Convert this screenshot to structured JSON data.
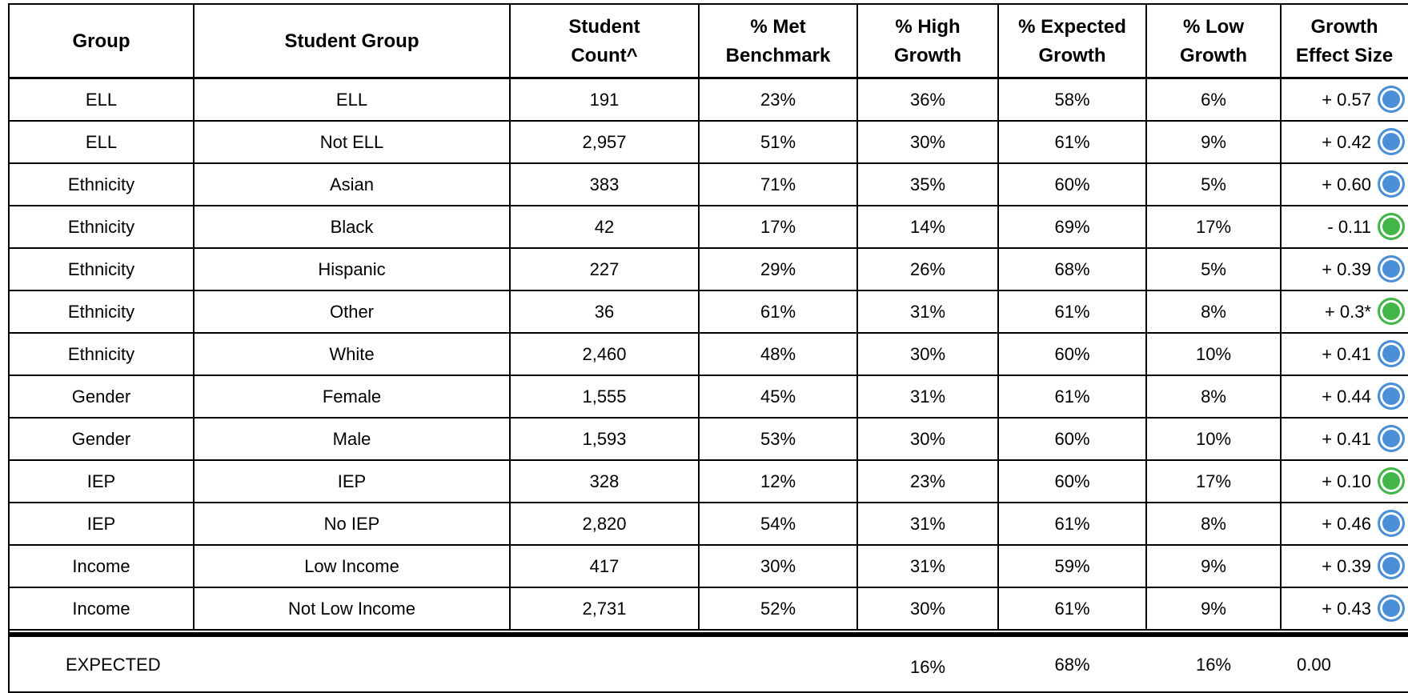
{
  "table": {
    "headers": [
      "Group",
      "Student Group",
      "Student Count^",
      "% Met Benchmark",
      "% High Growth",
      "% Expected Growth",
      "% Low Growth",
      "Growth Effect Size"
    ],
    "rows": [
      [
        "ELL",
        "ELL",
        "191",
        "23%",
        "36%",
        "58%",
        "6%",
        "+ 0.57"
      ],
      [
        "ELL",
        "Not ELL",
        "2,957",
        "51%",
        "30%",
        "61%",
        "9%",
        "+ 0.42"
      ],
      [
        "Ethnicity",
        "Asian",
        "383",
        "71%",
        "35%",
        "60%",
        "5%",
        "+ 0.60"
      ],
      [
        "Ethnicity",
        "Black",
        "42",
        "17%",
        "14%",
        "69%",
        "17%",
        "- 0.11"
      ],
      [
        "Ethnicity",
        "Hispanic",
        "227",
        "29%",
        "26%",
        "68%",
        "5%",
        "+ 0.39"
      ],
      [
        "Ethnicity",
        "Other",
        "36",
        "61%",
        "31%",
        "61%",
        "8%",
        "+ 0.3*"
      ],
      [
        "Ethnicity",
        "White",
        "2,460",
        "48%",
        "30%",
        "60%",
        "10%",
        "+ 0.41"
      ],
      [
        "Gender",
        "Female",
        "1,555",
        "45%",
        "31%",
        "61%",
        "8%",
        "+ 0.44"
      ],
      [
        "Gender",
        "Male",
        "1,593",
        "53%",
        "30%",
        "60%",
        "10%",
        "+ 0.41"
      ],
      [
        "IEP",
        "IEP",
        "328",
        "12%",
        "23%",
        "60%",
        "17%",
        "+ 0.10"
      ],
      [
        "IEP",
        "No IEP",
        "2,820",
        "54%",
        "31%",
        "61%",
        "8%",
        "+ 0.46"
      ],
      [
        "Income",
        "Low Income",
        "417",
        "30%",
        "31%",
        "59%",
        "9%",
        "+ 0.39"
      ],
      [
        "Income",
        "Not Low Income",
        "2,731",
        "52%",
        "30%",
        "61%",
        "9%",
        "+ 0.43"
      ]
    ],
    "indicator_colors": [
      "#4a8fd8",
      "#4a8fd8",
      "#4a8fd8",
      "#43b649",
      "#4a8fd8",
      "#43b649",
      "#4a8fd8",
      "#4a8fd8",
      "#4a8fd8",
      "#43b649",
      "#4a8fd8",
      "#4a8fd8",
      "#4a8fd8"
    ],
    "expected_row": {
      "label": "EXPECTED",
      "high": "16%",
      "expected": "68%",
      "low": "16%",
      "effect": "0.00"
    }
  }
}
